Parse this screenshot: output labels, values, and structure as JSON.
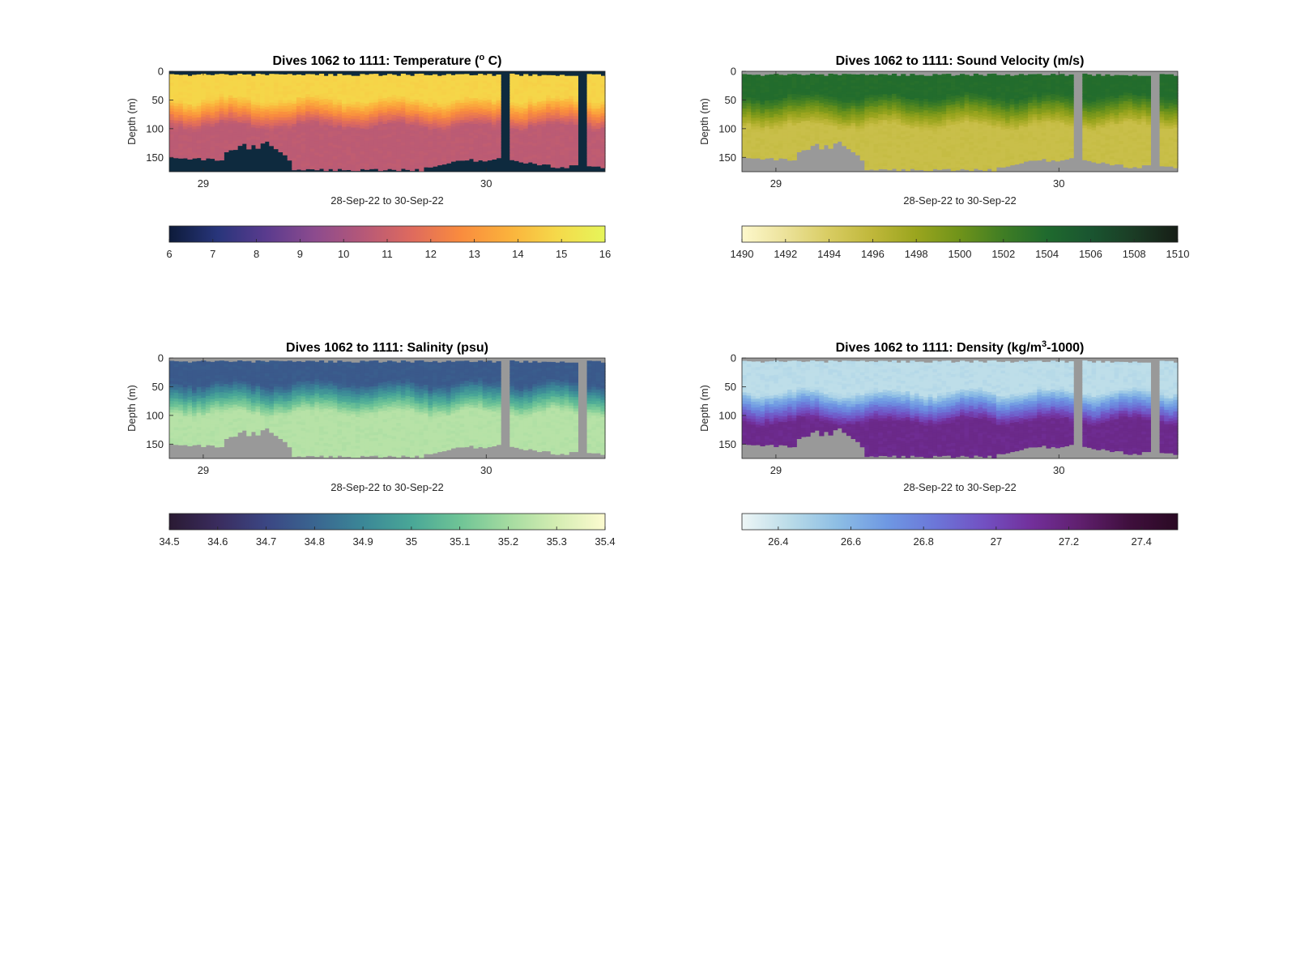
{
  "chart_data": [
    {
      "type": "heatmap",
      "title": "Dives 1062 to 1111: Temperature (",
      "title_sup": "o",
      "title_tail": " C)",
      "xlabel": "28-Sep-22 to 30-Sep-22",
      "ylabel": "Depth (m)",
      "x_ticks": [
        "29",
        "30"
      ],
      "x_range_days": [
        28.88,
        30.42
      ],
      "x_tick_values": [
        29,
        30
      ],
      "y_ticks": [
        "0",
        "50",
        "100",
        "150"
      ],
      "y_tick_values": [
        0,
        50,
        100,
        150
      ],
      "ylim": [
        0,
        175
      ],
      "no_data_color": "#0e2a3e",
      "colorbar": {
        "min": 6,
        "max": 16,
        "ticks": [
          "6",
          "7",
          "8",
          "9",
          "10",
          "11",
          "12",
          "13",
          "14",
          "15",
          "16"
        ],
        "tick_values": [
          6,
          7,
          8,
          9,
          10,
          11,
          12,
          13,
          14,
          15,
          16
        ],
        "colors": [
          "#0d1b3a",
          "#28357b",
          "#5a3b8e",
          "#8c4b8e",
          "#b55878",
          "#de6a5e",
          "#f98b3e",
          "#fbb13c",
          "#f5d94a",
          "#e6f55a"
        ]
      },
      "profile": {
        "surface": 14.8,
        "thermocline_top": 45,
        "thermocline_bottom": 95,
        "deep": 10.6
      }
    },
    {
      "type": "heatmap",
      "title": "Dives 1062 to 1111: Sound Velocity (m/s)",
      "xlabel": "28-Sep-22 to 30-Sep-22",
      "ylabel": "Depth (m)",
      "x_ticks": [
        "29",
        "30"
      ],
      "x_range_days": [
        28.88,
        30.42
      ],
      "x_tick_values": [
        29,
        30
      ],
      "y_ticks": [
        "0",
        "50",
        "100",
        "150"
      ],
      "y_tick_values": [
        0,
        50,
        100,
        150
      ],
      "ylim": [
        0,
        175
      ],
      "no_data_color": "#999999",
      "colorbar": {
        "min": 1490,
        "max": 1510,
        "ticks": [
          "1490",
          "1492",
          "1494",
          "1496",
          "1498",
          "1500",
          "1502",
          "1504",
          "1506",
          "1508",
          "1510"
        ],
        "tick_values": [
          1490,
          1492,
          1494,
          1496,
          1498,
          1500,
          1502,
          1504,
          1506,
          1508,
          1510
        ],
        "colors": [
          "#fdf8cc",
          "#ece29a",
          "#d8cc62",
          "#bfb73a",
          "#9aa51e",
          "#6f931a",
          "#3f7d24",
          "#1f6a2e",
          "#1a5530",
          "#1b3c25",
          "#161d16"
        ]
      },
      "profile": {
        "surface": 1503.8,
        "thermocline_top": 40,
        "thermocline_bottom": 95,
        "deep": 1495.2
      }
    },
    {
      "type": "heatmap",
      "title": "Dives 1062 to 1111: Salinity (psu)",
      "xlabel": "28-Sep-22 to 30-Sep-22",
      "ylabel": "Depth (m)",
      "x_ticks": [
        "29",
        "30"
      ],
      "x_range_days": [
        28.88,
        30.42
      ],
      "x_tick_values": [
        29,
        30
      ],
      "y_ticks": [
        "0",
        "50",
        "100",
        "150"
      ],
      "y_tick_values": [
        0,
        50,
        100,
        150
      ],
      "ylim": [
        0,
        175
      ],
      "no_data_color": "#999999",
      "colorbar": {
        "min": 34.5,
        "max": 35.4,
        "ticks": [
          "34.5",
          "34.6",
          "34.7",
          "34.8",
          "34.9",
          "35",
          "35.1",
          "35.2",
          "35.3",
          "35.4"
        ],
        "tick_values": [
          34.5,
          34.6,
          34.7,
          34.8,
          34.9,
          35,
          35.1,
          35.2,
          35.3,
          35.4
        ],
        "colors": [
          "#2a1a33",
          "#3a2c5e",
          "#3b4683",
          "#3a6590",
          "#3b8797",
          "#49a797",
          "#6fc496",
          "#a4dba0",
          "#d4edb2",
          "#fdfbd0"
        ]
      },
      "profile": {
        "surface": 34.76,
        "thermocline_top": 40,
        "thermocline_bottom": 95,
        "deep": 35.24
      }
    },
    {
      "type": "heatmap",
      "title": "Dives 1062 to 1111: Density (kg/m",
      "title_sup": "3",
      "title_tail": "-1000)",
      "xlabel": "28-Sep-22 to 30-Sep-22",
      "ylabel": "Depth (m)",
      "x_ticks": [
        "29",
        "30"
      ],
      "x_range_days": [
        28.88,
        30.42
      ],
      "x_tick_values": [
        29,
        30
      ],
      "y_ticks": [
        "0",
        "50",
        "100",
        "150"
      ],
      "y_tick_values": [
        0,
        50,
        100,
        150
      ],
      "ylim": [
        0,
        175
      ],
      "no_data_color": "#999999",
      "colorbar": {
        "min": 26.3,
        "max": 27.5,
        "ticks": [
          "26.4",
          "26.6",
          "26.8",
          "27",
          "27.2",
          "27.4"
        ],
        "tick_values": [
          26.4,
          26.6,
          26.8,
          27.0,
          27.2,
          27.4
        ],
        "colors": [
          "#eef6f6",
          "#b9dbe8",
          "#8cbde4",
          "#6e98e3",
          "#6c76d8",
          "#7250c2",
          "#722f9a",
          "#5f1f6d",
          "#3f0f3d",
          "#2a0a23"
        ]
      },
      "profile": {
        "surface": 26.42,
        "thermocline_top": 55,
        "thermocline_bottom": 110,
        "deep": 27.15
      }
    }
  ]
}
